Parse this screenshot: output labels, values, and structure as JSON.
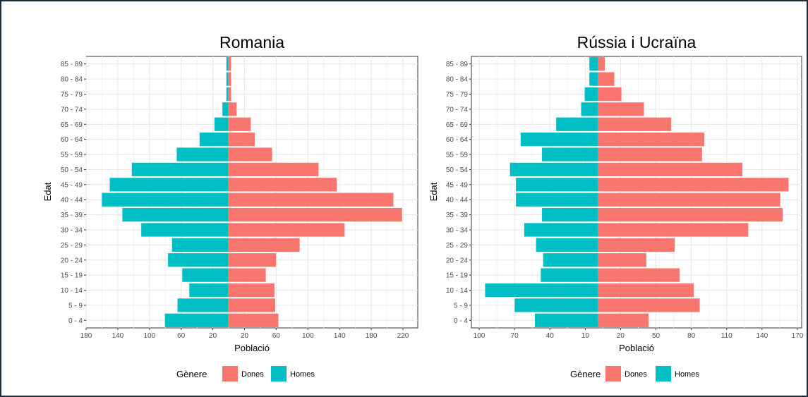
{
  "colors": {
    "dones": "#F8766D",
    "homes": "#00BFC4"
  },
  "chart_data": [
    {
      "type": "bar",
      "orientation": "horizontal-population-pyramid",
      "title": "Romania",
      "xlabel": "Població",
      "ylabel": "Edat",
      "categories": [
        "0 - 4",
        "5 - 9",
        "10 - 14",
        "15 - 19",
        "20 - 24",
        "25 - 29",
        "30 - 34",
        "35 - 39",
        "40 - 44",
        "45 - 49",
        "50 - 54",
        "55 - 59",
        "60 - 64",
        "65 - 69",
        "70 - 74",
        "75 - 79",
        "80 - 84",
        "85 - 89"
      ],
      "x_ticks": [
        "180",
        "140",
        "100",
        "60",
        "20",
        "20",
        "60",
        "100",
        "140",
        "180",
        "220"
      ],
      "series": [
        {
          "name": "Dones",
          "values": [
            64,
            60,
            59,
            48,
            61,
            91,
            148,
            221,
            210,
            138,
            115,
            56,
            34,
            29,
            11,
            4,
            4,
            4
          ]
        },
        {
          "name": "Homes",
          "values": [
            -80,
            -64,
            -49,
            -58,
            -76,
            -71,
            -110,
            -134,
            -160,
            -150,
            -122,
            -65,
            -36,
            -17,
            -7,
            -2,
            -2,
            -2
          ]
        }
      ],
      "xlim": [
        -180,
        240
      ],
      "grid": true,
      "legend": {
        "title": "Gènere",
        "position": "bottom",
        "items": [
          "Dones",
          "Homes"
        ]
      }
    },
    {
      "type": "bar",
      "orientation": "horizontal-population-pyramid",
      "title": "Rússia i Ucraïna",
      "xlabel": "Població",
      "ylabel": "Edat",
      "categories": [
        "0 - 4",
        "5 - 9",
        "10 - 14",
        "15 - 19",
        "20 - 24",
        "25 - 29",
        "30 - 34",
        "35 - 39",
        "40 - 44",
        "45 - 49",
        "50 - 54",
        "55 - 59",
        "60 - 64",
        "65 - 69",
        "70 - 74",
        "75 - 79",
        "80 - 84",
        "85 - 89"
      ],
      "x_ticks": [
        "100",
        "70",
        "40",
        "10",
        "20",
        "50",
        "80",
        "110",
        "140",
        "170"
      ],
      "series": [
        {
          "name": "Dones",
          "values": [
            43,
            86,
            81,
            69,
            41,
            65,
            127,
            156,
            154,
            161,
            122,
            88,
            90,
            62,
            39,
            20,
            14,
            6
          ]
        },
        {
          "name": "Homes",
          "values": [
            -53,
            -70,
            -95,
            -48,
            -46,
            -52,
            -62,
            -47,
            -69,
            -69,
            -74,
            -47,
            -65,
            -35,
            -14,
            -11,
            -7,
            -7
          ]
        }
      ],
      "xlim": [
        -100,
        170
      ],
      "grid": true,
      "legend": {
        "title": "Gènere",
        "position": "bottom",
        "items": [
          "Dones",
          "Homes"
        ]
      }
    }
  ]
}
